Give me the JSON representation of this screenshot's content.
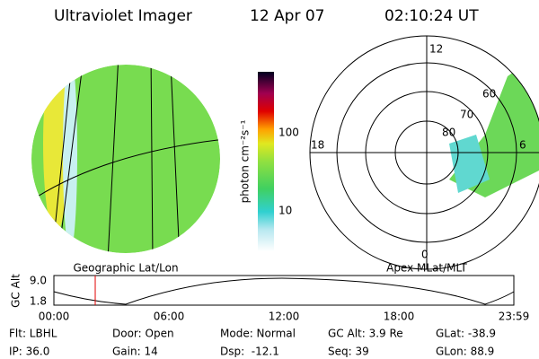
{
  "header": {
    "instrument": "Ultraviolet Imager",
    "date": "12 Apr 07",
    "time": "02:10:24 UT"
  },
  "left_panel": {
    "label": "Geographic Lat/Lon"
  },
  "colorbar": {
    "label": "photon cm⁻²s⁻¹",
    "ticks": [
      "100",
      "10"
    ]
  },
  "right_panel": {
    "label": "Apex MLat/MLT",
    "mlt_labels": [
      "12",
      "18",
      "6",
      "0"
    ],
    "lat_labels": [
      "60",
      "70",
      "80"
    ]
  },
  "orbit": {
    "axis_label": "GC Alt",
    "y_labels": [
      "9.0",
      "1.8"
    ],
    "time_labels": [
      "00:00",
      "06:00",
      "12:00",
      "18:00",
      "23:59"
    ]
  },
  "footer": [
    [
      "Flt: LBHL",
      "IP: 36.0"
    ],
    [
      "Door: Open",
      "Gain: 14"
    ],
    [
      "Mode: Normal",
      "Dsp:  -12.1"
    ],
    [
      "GC Alt: 3.9 Re",
      "Seq: 39"
    ],
    [
      "GLat: -38.9",
      "GLon: 88.9"
    ]
  ]
}
